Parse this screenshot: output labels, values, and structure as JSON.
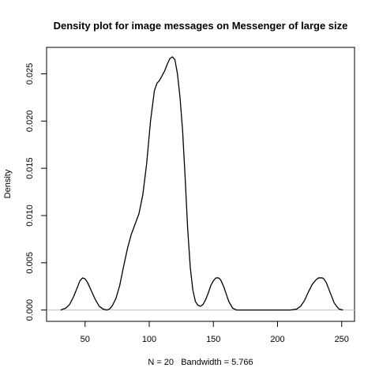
{
  "chart_data": {
    "type": "line",
    "title": "Density plot for image messages on Messenger of large size",
    "xlabel": "N = 20   Bandwidth = 5.766",
    "ylabel": "Density",
    "xlim": [
      20,
      260
    ],
    "ylim": [
      -0.0012,
      0.0278
    ],
    "x_ticks": [
      50,
      100,
      150,
      200,
      250
    ],
    "y_ticks": [
      0.0,
      0.005,
      0.01,
      0.015,
      0.02,
      0.025
    ],
    "y_tick_labels": [
      "0.000",
      "0.005",
      "0.010",
      "0.015",
      "0.020",
      "0.025"
    ],
    "baseline": 0,
    "grid": false,
    "series": [
      {
        "x": [
          31,
          35,
          38,
          41,
          44,
          46,
          48,
          50,
          52,
          55,
          58,
          61,
          64,
          67,
          69,
          71,
          74,
          77,
          80,
          83,
          86,
          89,
          92,
          95,
          98,
          101,
          104,
          106,
          108,
          110,
          112,
          114,
          116,
          118,
          120,
          122,
          124,
          126,
          128,
          130,
          132,
          134,
          136,
          138,
          140,
          142,
          144,
          146,
          148,
          150,
          152,
          154,
          155,
          156,
          158,
          160,
          162,
          165,
          168,
          172,
          176,
          180,
          190,
          200,
          210,
          215,
          218,
          221,
          224,
          227,
          230,
          232,
          234,
          235,
          236,
          238,
          240,
          242,
          244,
          246,
          248,
          251
        ],
        "y": [
          0.0,
          0.0002,
          0.0006,
          0.0014,
          0.0024,
          0.0031,
          0.0034,
          0.0033,
          0.0029,
          0.002,
          0.0011,
          0.0004,
          0.0001,
          0.0,
          0.0001,
          0.0004,
          0.0012,
          0.0026,
          0.0046,
          0.0065,
          0.008,
          0.0091,
          0.0102,
          0.0122,
          0.0155,
          0.02,
          0.0232,
          0.024,
          0.0243,
          0.0248,
          0.0253,
          0.026,
          0.0266,
          0.0268,
          0.0265,
          0.025,
          0.0225,
          0.019,
          0.014,
          0.0085,
          0.0045,
          0.0021,
          0.0009,
          0.0005,
          0.0004,
          0.0006,
          0.0011,
          0.0018,
          0.0026,
          0.0031,
          0.0034,
          0.0034,
          0.0033,
          0.0031,
          0.0025,
          0.0017,
          0.0009,
          0.0002,
          0.0,
          0.0,
          0.0,
          0.0,
          0.0,
          0.0,
          0.0,
          0.0001,
          0.0004,
          0.001,
          0.0019,
          0.0027,
          0.0032,
          0.0034,
          0.0034,
          0.0034,
          0.0033,
          0.0029,
          0.0022,
          0.0015,
          0.0008,
          0.0004,
          0.0001,
          0.0
        ]
      }
    ]
  }
}
